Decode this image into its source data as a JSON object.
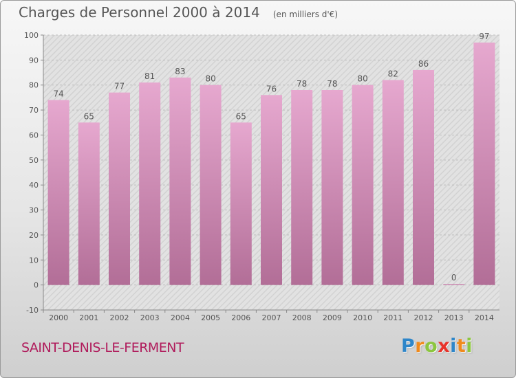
{
  "header": {
    "title": "Charges de Personnel 2000 à 2014",
    "subtitle": "(en milliers d'€)"
  },
  "footer": {
    "commune": "SAINT-DENIS-LE-FERMENT",
    "logo_letters": [
      {
        "char": "P",
        "color": "#2e86c9"
      },
      {
        "char": "r",
        "color": "#f08a1c"
      },
      {
        "char": "o",
        "color": "#8cc63f"
      },
      {
        "char": "x",
        "color": "#e8342b"
      },
      {
        "char": "i",
        "color": "#2e86c9"
      },
      {
        "char": "t",
        "color": "#f08a1c"
      },
      {
        "char": "i",
        "color": "#8cc63f"
      }
    ]
  },
  "colors": {
    "bar_top": "#e6a8cf",
    "bar_bottom": "#b26e97",
    "text": "#555555",
    "commune": "#b01c5c"
  },
  "chart_data": {
    "type": "bar",
    "title": "Charges de Personnel 2000 à 2014",
    "subtitle": "(en milliers d'€)",
    "categories": [
      "2000",
      "2001",
      "2002",
      "2003",
      "2004",
      "2005",
      "2006",
      "2007",
      "2008",
      "2009",
      "2010",
      "2011",
      "2012",
      "2013",
      "2014"
    ],
    "values": [
      74,
      65,
      77,
      81,
      83,
      80,
      65,
      76,
      78,
      78,
      80,
      82,
      86,
      0,
      97
    ],
    "ylim": [
      -10,
      100
    ],
    "yticks": [
      -10,
      0,
      10,
      20,
      30,
      40,
      50,
      60,
      70,
      80,
      90,
      100
    ],
    "grid": true,
    "legend": "none"
  }
}
